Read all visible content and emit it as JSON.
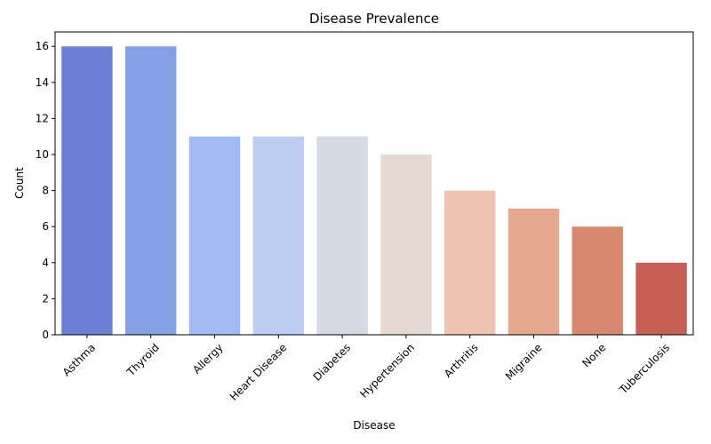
{
  "chart_data": {
    "type": "bar",
    "title": "Disease Prevalence",
    "xlabel": "Disease",
    "ylabel": "Count",
    "categories": [
      "Asthma",
      "Thyroid",
      "Allergy",
      "Heart Disease",
      "Diabetes",
      "Hypertension",
      "Arthritis",
      "Migraine",
      "None",
      "Tuberculosis"
    ],
    "values": [
      16,
      16,
      11,
      11,
      11,
      10,
      8,
      7,
      6,
      4
    ],
    "colors": [
      "#6b80d9",
      "#86a0e8",
      "#a3bbf4",
      "#bccff2",
      "#d5dae5",
      "#e5d8d1",
      "#ecc4b0",
      "#e6a88e",
      "#d98870",
      "#c55f55"
    ],
    "ylim": [
      0,
      16.8
    ],
    "yticks": [
      0,
      2,
      4,
      6,
      8,
      10,
      12,
      14,
      16
    ],
    "grid": false,
    "legend": "none"
  }
}
